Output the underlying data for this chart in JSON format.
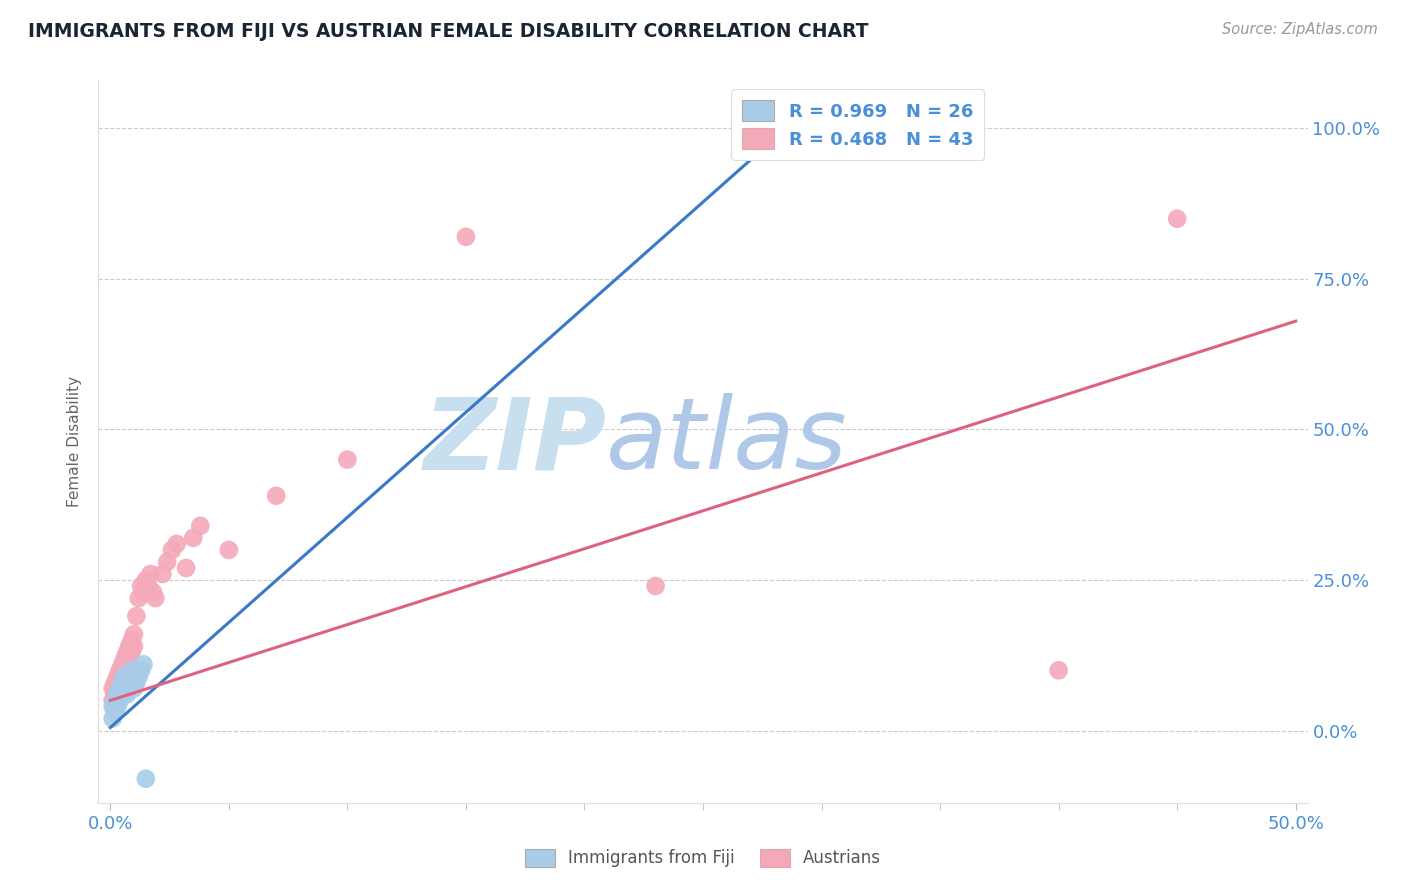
{
  "title": "IMMIGRANTS FROM FIJI VS AUSTRIAN FEMALE DISABILITY CORRELATION CHART",
  "source_text": "Source: ZipAtlas.com",
  "ylabel": "Female Disability",
  "yticks_labels": [
    "0.0%",
    "25.0%",
    "50.0%",
    "75.0%",
    "100.0%"
  ],
  "ytick_vals": [
    0.0,
    0.25,
    0.5,
    0.75,
    1.0
  ],
  "xmin": 0.0,
  "xmax": 0.5,
  "ymin": -0.12,
  "ymax": 1.08,
  "fiji_R": 0.969,
  "fiji_N": 26,
  "austrian_R": 0.468,
  "austrian_N": 43,
  "fiji_color": "#a8cce8",
  "austrian_color": "#f4a9b8",
  "fiji_line_color": "#3a78c9",
  "austrian_line_color": "#e06080",
  "legend_fiji_label": "Immigrants from Fiji",
  "legend_austrian_label": "Austrians",
  "fiji_scatter_x": [
    0.001,
    0.001,
    0.002,
    0.002,
    0.003,
    0.003,
    0.004,
    0.004,
    0.005,
    0.005,
    0.006,
    0.006,
    0.007,
    0.007,
    0.008,
    0.008,
    0.009,
    0.009,
    0.01,
    0.01,
    0.011,
    0.012,
    0.013,
    0.014,
    0.28,
    0.015
  ],
  "fiji_scatter_y": [
    0.02,
    0.04,
    0.03,
    0.05,
    0.04,
    0.06,
    0.05,
    0.07,
    0.06,
    0.08,
    0.07,
    0.09,
    0.06,
    0.08,
    0.07,
    0.09,
    0.08,
    0.1,
    0.07,
    0.09,
    0.08,
    0.09,
    0.1,
    0.11,
    0.98,
    -0.08
  ],
  "austrian_scatter_x": [
    0.001,
    0.001,
    0.002,
    0.002,
    0.003,
    0.003,
    0.004,
    0.004,
    0.005,
    0.005,
    0.006,
    0.006,
    0.007,
    0.007,
    0.008,
    0.008,
    0.009,
    0.009,
    0.01,
    0.01,
    0.011,
    0.012,
    0.013,
    0.014,
    0.015,
    0.016,
    0.017,
    0.018,
    0.019,
    0.022,
    0.024,
    0.026,
    0.028,
    0.032,
    0.035,
    0.038,
    0.05,
    0.07,
    0.1,
    0.15,
    0.23,
    0.4,
    0.45
  ],
  "austrian_scatter_y": [
    0.05,
    0.07,
    0.06,
    0.08,
    0.07,
    0.09,
    0.08,
    0.1,
    0.09,
    0.11,
    0.1,
    0.12,
    0.11,
    0.13,
    0.12,
    0.14,
    0.13,
    0.15,
    0.14,
    0.16,
    0.19,
    0.22,
    0.24,
    0.23,
    0.25,
    0.24,
    0.26,
    0.23,
    0.22,
    0.26,
    0.28,
    0.3,
    0.31,
    0.27,
    0.32,
    0.34,
    0.3,
    0.39,
    0.45,
    0.82,
    0.24,
    0.1,
    0.85
  ],
  "fiji_line_x": [
    0.0,
    0.285
  ],
  "fiji_line_y0": 0.005,
  "fiji_line_y1": 1.0,
  "austrian_line_x": [
    0.0,
    0.5
  ],
  "austrian_line_y0": 0.05,
  "austrian_line_y1": 0.68,
  "background_color": "#ffffff",
  "grid_color": "#cccccc",
  "title_color": "#1a2533",
  "axis_tick_color": "#4a90d9",
  "watermark_zip": "ZIP",
  "watermark_atlas": "atlas",
  "watermark_color_zip": "#c8dff0",
  "watermark_color_atlas": "#b0c8e8"
}
